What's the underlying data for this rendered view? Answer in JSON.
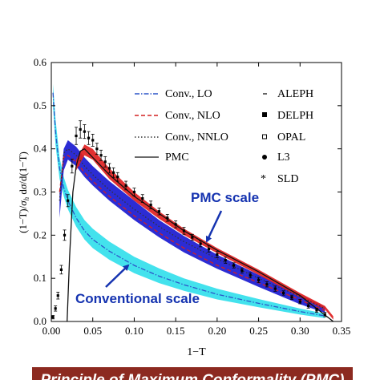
{
  "chart_data": {
    "type": "line",
    "xlabel": "1−T",
    "ylabel": "(1−T)/σh dσ/d(1−T)",
    "xlim": [
      0,
      0.35
    ],
    "ylim": [
      0,
      0.6
    ],
    "x_ticks": [
      "0.00",
      "0.05",
      "0.10",
      "0.15",
      "0.20",
      "0.25",
      "0.30",
      "0.35"
    ],
    "y_ticks": [
      "0.0",
      "0.1",
      "0.2",
      "0.3",
      "0.4",
      "0.5",
      "0.6"
    ],
    "legend_left": [
      "Conv., LO",
      "Conv., NLO",
      "Conv., NNLO",
      "PMC"
    ],
    "legend_right": [
      "ALEPH",
      "DELPH",
      "OPAL",
      "L3",
      "SLD"
    ],
    "legend_placement": "top",
    "annotations": {
      "pmc": "PMC scale",
      "conventional": "Conventional scale"
    },
    "series": [
      {
        "name": "Conv., LO",
        "style": "dash-dot",
        "color": "#2c55c8",
        "x": [
          0.002,
          0.005,
          0.01,
          0.015,
          0.02,
          0.03,
          0.04,
          0.05,
          0.07,
          0.1,
          0.13,
          0.16,
          0.2,
          0.25,
          0.3,
          0.33
        ],
        "y": [
          0.53,
          0.44,
          0.355,
          0.31,
          0.28,
          0.24,
          0.21,
          0.19,
          0.163,
          0.13,
          0.105,
          0.085,
          0.063,
          0.042,
          0.023,
          0.013
        ]
      },
      {
        "name": "Conv., NLO",
        "style": "dashed",
        "color": "#d42020",
        "x": [
          0.01,
          0.015,
          0.02,
          0.03,
          0.04,
          0.05,
          0.07,
          0.1,
          0.13,
          0.16,
          0.2,
          0.25,
          0.3,
          0.33
        ],
        "y": [
          0.3,
          0.38,
          0.385,
          0.37,
          0.345,
          0.325,
          0.29,
          0.245,
          0.205,
          0.17,
          0.13,
          0.09,
          0.05,
          0.025
        ]
      },
      {
        "name": "Conv., NNLO",
        "style": "dotted",
        "color": "#333333",
        "x": [
          0.01,
          0.015,
          0.02,
          0.03,
          0.04,
          0.05,
          0.07,
          0.1,
          0.13,
          0.16,
          0.2,
          0.25,
          0.3,
          0.33
        ],
        "y": [
          0.28,
          0.39,
          0.4,
          0.385,
          0.36,
          0.34,
          0.305,
          0.26,
          0.22,
          0.185,
          0.145,
          0.1,
          0.058,
          0.03
        ]
      },
      {
        "name": "PMC",
        "style": "solid",
        "color": "#111111",
        "x": [
          0.019,
          0.022,
          0.026,
          0.03,
          0.035,
          0.04,
          0.045,
          0.05,
          0.06,
          0.07,
          0.1,
          0.13,
          0.16,
          0.2,
          0.25,
          0.3,
          0.32,
          0.34
        ],
        "y": [
          0.0,
          0.15,
          0.3,
          0.36,
          0.395,
          0.4,
          0.39,
          0.38,
          0.36,
          0.34,
          0.29,
          0.25,
          0.21,
          0.165,
          0.115,
          0.06,
          0.03,
          0.0
        ]
      }
    ],
    "bands": [
      {
        "name": "Conventional LO band",
        "color": "#33e0ec",
        "x": [
          0.002,
          0.005,
          0.01,
          0.015,
          0.02,
          0.03,
          0.04,
          0.05,
          0.07,
          0.1,
          0.13,
          0.16,
          0.2,
          0.25,
          0.3,
          0.33
        ],
        "upper": [
          0.55,
          0.47,
          0.38,
          0.335,
          0.305,
          0.265,
          0.235,
          0.215,
          0.185,
          0.15,
          0.123,
          0.1,
          0.076,
          0.052,
          0.03,
          0.018
        ],
        "lower": [
          0.5,
          0.41,
          0.33,
          0.29,
          0.26,
          0.22,
          0.19,
          0.17,
          0.143,
          0.112,
          0.089,
          0.071,
          0.051,
          0.033,
          0.016,
          0.008
        ]
      },
      {
        "name": "Conventional NNLO band",
        "color": "#1a1ad0",
        "x": [
          0.01,
          0.015,
          0.02,
          0.03,
          0.04,
          0.05,
          0.07,
          0.1,
          0.13,
          0.16,
          0.2,
          0.25,
          0.3,
          0.33
        ],
        "upper": [
          0.3,
          0.4,
          0.42,
          0.405,
          0.38,
          0.36,
          0.325,
          0.28,
          0.235,
          0.198,
          0.155,
          0.108,
          0.062,
          0.034
        ],
        "lower": [
          0.24,
          0.35,
          0.375,
          0.36,
          0.335,
          0.315,
          0.28,
          0.235,
          0.195,
          0.16,
          0.122,
          0.08,
          0.04,
          0.02
        ]
      },
      {
        "name": "PMC band",
        "color": "#e02020",
        "x": [
          0.03,
          0.04,
          0.05,
          0.07,
          0.1,
          0.13,
          0.16,
          0.2,
          0.25,
          0.3,
          0.33,
          0.34
        ],
        "upper": [
          0.375,
          0.41,
          0.4,
          0.355,
          0.3,
          0.255,
          0.215,
          0.17,
          0.12,
          0.066,
          0.036,
          0.012
        ],
        "lower": [
          0.35,
          0.385,
          0.375,
          0.33,
          0.28,
          0.238,
          0.2,
          0.158,
          0.108,
          0.056,
          0.028,
          0.004
        ]
      }
    ],
    "data": {
      "name": "Experimental data",
      "x": [
        0.002,
        0.005,
        0.008,
        0.012,
        0.016,
        0.02,
        0.025,
        0.03,
        0.035,
        0.04,
        0.045,
        0.05,
        0.055,
        0.06,
        0.065,
        0.07,
        0.075,
        0.08,
        0.09,
        0.1,
        0.11,
        0.12,
        0.13,
        0.14,
        0.15,
        0.16,
        0.17,
        0.18,
        0.19,
        0.2,
        0.21,
        0.22,
        0.23,
        0.24,
        0.25,
        0.26,
        0.27,
        0.28,
        0.29,
        0.3,
        0.31,
        0.32,
        0.33
      ],
      "y": [
        0.01,
        0.03,
        0.06,
        0.12,
        0.2,
        0.28,
        0.36,
        0.43,
        0.445,
        0.44,
        0.425,
        0.42,
        0.4,
        0.385,
        0.37,
        0.355,
        0.345,
        0.335,
        0.315,
        0.3,
        0.285,
        0.27,
        0.255,
        0.24,
        0.225,
        0.21,
        0.195,
        0.18,
        0.168,
        0.155,
        0.142,
        0.13,
        0.118,
        0.107,
        0.096,
        0.086,
        0.076,
        0.066,
        0.056,
        0.046,
        0.036,
        0.026,
        0.016
      ],
      "err": [
        0.004,
        0.006,
        0.008,
        0.01,
        0.012,
        0.014,
        0.016,
        0.02,
        0.02,
        0.016,
        0.015,
        0.014,
        0.013,
        0.012,
        0.012,
        0.011,
        0.011,
        0.01,
        0.01,
        0.009,
        0.009,
        0.009,
        0.008,
        0.008,
        0.008,
        0.008,
        0.007,
        0.007,
        0.007,
        0.007,
        0.007,
        0.006,
        0.006,
        0.006,
        0.006,
        0.006,
        0.006,
        0.005,
        0.005,
        0.005,
        0.005,
        0.005,
        0.005
      ]
    }
  },
  "banner": {
    "text": "Principle of Maximum Conformality (PMC)"
  }
}
